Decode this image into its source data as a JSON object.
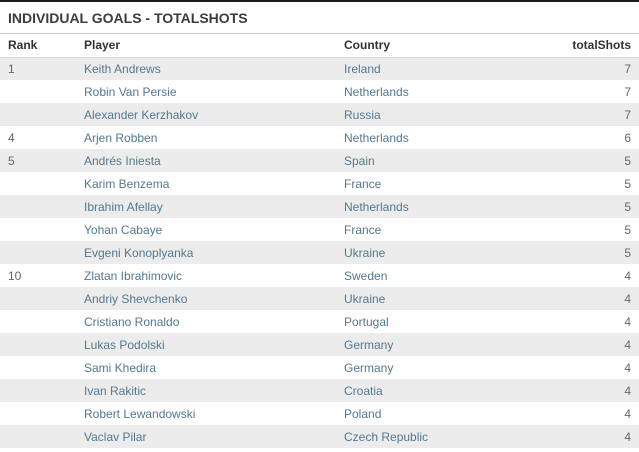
{
  "page": {
    "title": "INDIVIDUAL GOALS - TOTALSHOTS"
  },
  "table": {
    "columns": {
      "rank": "Rank",
      "player": "Player",
      "country": "Country",
      "shots": "totalShots"
    },
    "rows": [
      {
        "rank": "1",
        "player": "Keith Andrews",
        "country": "Ireland",
        "shots": "7"
      },
      {
        "rank": "",
        "player": "Robin Van Persie",
        "country": "Netherlands",
        "shots": "7"
      },
      {
        "rank": "",
        "player": "Alexander Kerzhakov",
        "country": "Russia",
        "shots": "7"
      },
      {
        "rank": "4",
        "player": "Arjen Robben",
        "country": "Netherlands",
        "shots": "6"
      },
      {
        "rank": "5",
        "player": "Andrés Iniesta",
        "country": "Spain",
        "shots": "5"
      },
      {
        "rank": "",
        "player": "Karim Benzema",
        "country": "France",
        "shots": "5"
      },
      {
        "rank": "",
        "player": "Ibrahim Afellay",
        "country": "Netherlands",
        "shots": "5"
      },
      {
        "rank": "",
        "player": "Yohan Cabaye",
        "country": "France",
        "shots": "5"
      },
      {
        "rank": "",
        "player": "Evgeni Konoplyanka",
        "country": "Ukraine",
        "shots": "5"
      },
      {
        "rank": "10",
        "player": "Zlatan Ibrahimovic",
        "country": "Sweden",
        "shots": "4"
      },
      {
        "rank": "",
        "player": "Andriy Shevchenko",
        "country": "Ukraine",
        "shots": "4"
      },
      {
        "rank": "",
        "player": "Cristiano Ronaldo",
        "country": "Portugal",
        "shots": "4"
      },
      {
        "rank": "",
        "player": "Lukas Podolski",
        "country": "Germany",
        "shots": "4"
      },
      {
        "rank": "",
        "player": "Sami Khedira",
        "country": "Germany",
        "shots": "4"
      },
      {
        "rank": "",
        "player": "Ivan Rakitic",
        "country": "Croatia",
        "shots": "4"
      },
      {
        "rank": "",
        "player": "Robert Lewandowski",
        "country": "Poland",
        "shots": "4"
      },
      {
        "rank": "",
        "player": "Vaclav Pilar",
        "country": "Czech Republic",
        "shots": "4"
      }
    ]
  },
  "colors": {
    "top_bar": "#1b1b1b",
    "title_text": "#3c3c3c",
    "header_text": "#333333",
    "link_text": "#54788f",
    "muted_text": "#666666",
    "stripe": "#ececec",
    "divider": "#cccccc"
  }
}
